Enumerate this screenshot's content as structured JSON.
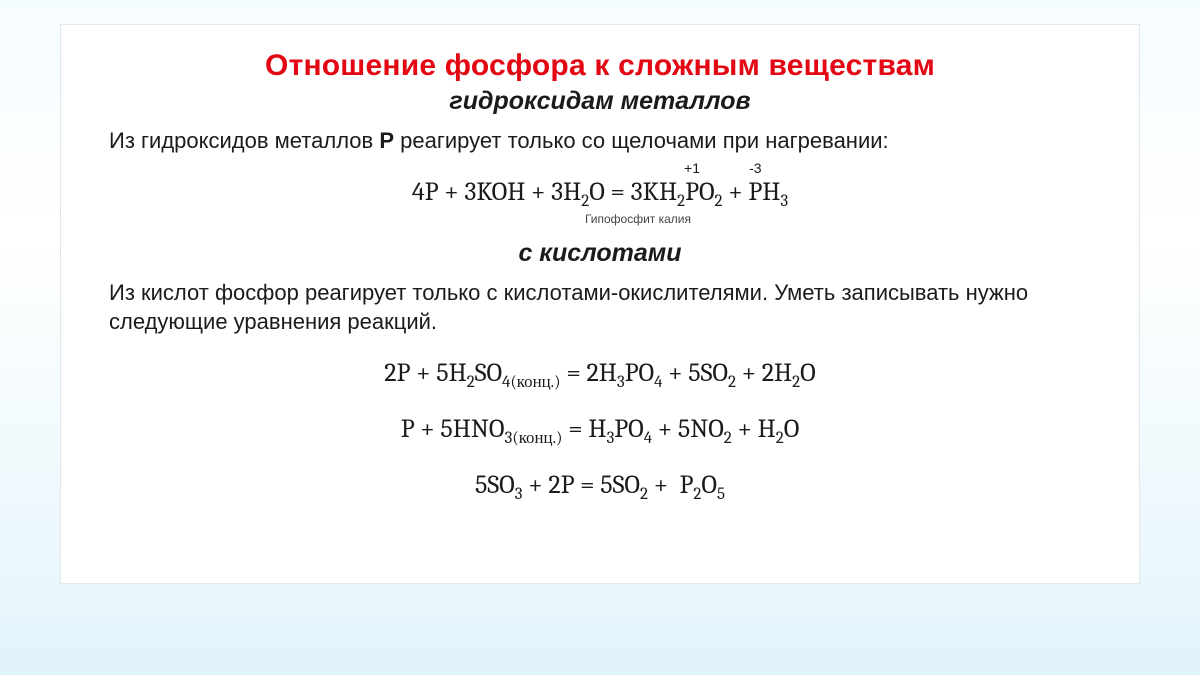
{
  "colors": {
    "title": "#e30613",
    "body": "#1b1b1b",
    "card_bg": "#ffffff",
    "page_bg_top": "#f5fcff",
    "page_bg_bottom": "#dff3fa"
  },
  "title": "Отношение фосфора к сложным веществам",
  "sub1": "гидроксидам металлов",
  "intro1": "Из гидроксидов металлов P реагирует только со щелочами при нагревании:",
  "eq1": {
    "lhs": "4P + 3KOH + 3H₂O = 3KH₂",
    "ox1_sym": "P",
    "ox1_num": "+1",
    "mid": "O₂ + ",
    "ox2_sym": "P",
    "ox2_num": "-3",
    "rhs": "H₃",
    "note": "Гипофосфит калия"
  },
  "sub2": "с кислотами",
  "intro2": "Из кислот фосфор реагирует только с кислотами-окислителями. Уметь записывать нужно следующие уравнения реакций.",
  "eq2": "2P + 5H₂SO₄₍конц.₎ = 2H₃PO₄ + 5SO₂ + 2H₂O",
  "eq3": "P + 5HNO₃₍конц.₎ = H₃PO₄ + 5NO₂ + H₂O",
  "eq4": "5SO₃ + 2P = 5SO₂ +  P₂O₅"
}
